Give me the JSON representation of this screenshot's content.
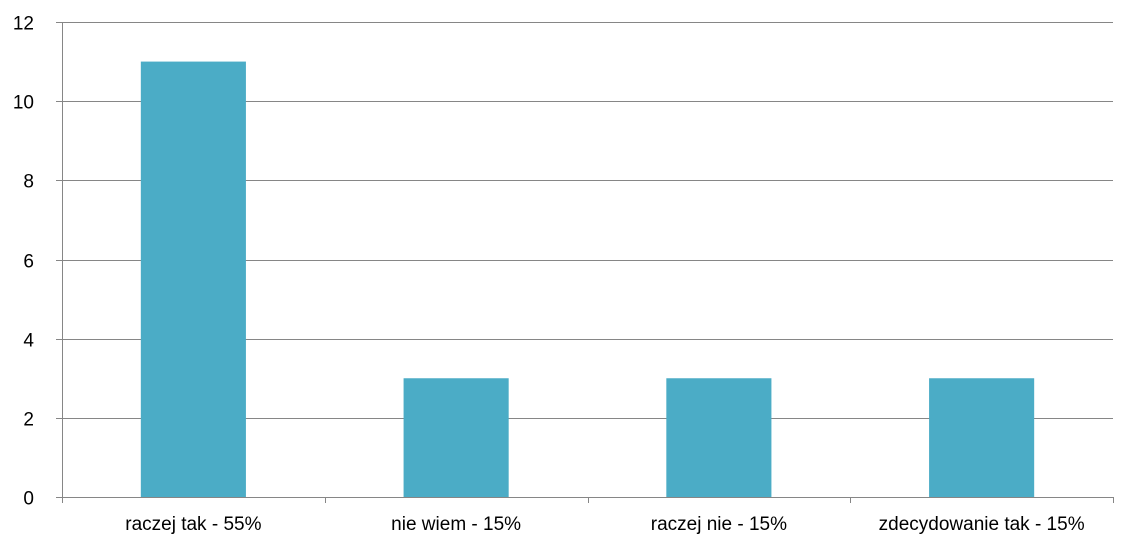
{
  "chart_data": {
    "type": "bar",
    "categories": [
      "raczej tak - 55%",
      "nie wiem - 15%",
      "raczej nie - 15%",
      "zdecydowanie tak - 15%"
    ],
    "values": [
      11,
      3,
      3,
      3
    ],
    "title": "",
    "xlabel": "",
    "ylabel": "",
    "ylim": [
      0,
      12
    ],
    "yticks": [
      0,
      2,
      4,
      6,
      8,
      10,
      12
    ],
    "grid": true,
    "legend": "none",
    "bar_color": "#4BACC6",
    "grid_color": "#868686"
  }
}
